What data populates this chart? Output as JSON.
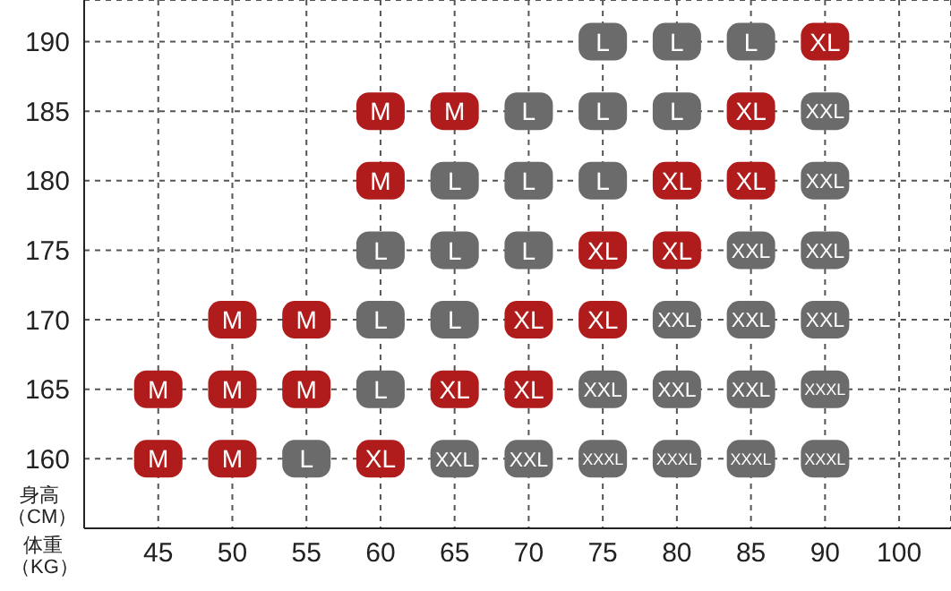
{
  "chart_data": {
    "type": "scatter",
    "xlabel": "体重（KG）",
    "ylabel": "身高（CM）",
    "categories": [
      "45",
      "50",
      "55",
      "60",
      "65",
      "70",
      "75",
      "80",
      "85",
      "90",
      "100"
    ],
    "ylim": [
      155,
      193
    ],
    "yticks": [
      160,
      165,
      170,
      175,
      180,
      185,
      190
    ],
    "grid": true,
    "legend": false,
    "marker": "square",
    "series": [
      {
        "name": "M",
        "color": "#b01c1c",
        "x": [
          "45",
          "45",
          "50",
          "50",
          "50",
          "55",
          "55",
          "60",
          "60",
          "65"
        ],
        "values": [
          165,
          160,
          170,
          165,
          160,
          170,
          165,
          185,
          180,
          185
        ]
      },
      {
        "name": "L",
        "color": "#6b6b6b",
        "x": [
          "75",
          "80",
          "85",
          "70",
          "75",
          "80",
          "65",
          "70",
          "75",
          "60",
          "65",
          "70",
          "60",
          "65",
          "60",
          "55"
        ],
        "values": [
          190,
          190,
          190,
          185,
          185,
          185,
          180,
          180,
          180,
          175,
          175,
          175,
          170,
          170,
          165,
          160
        ]
      },
      {
        "name": "XL",
        "color": "#b01c1c",
        "x": [
          "90",
          "85",
          "80",
          "85",
          "75",
          "80",
          "70",
          "75",
          "65",
          "70",
          "60"
        ],
        "values": [
          190,
          185,
          180,
          180,
          175,
          175,
          170,
          170,
          165,
          165,
          160
        ]
      },
      {
        "name": "XXL",
        "color": "#6b6b6b",
        "x": [
          "90",
          "90",
          "85",
          "90",
          "80",
          "85",
          "90",
          "75",
          "80",
          "85",
          "65",
          "70"
        ],
        "values": [
          185,
          180,
          175,
          175,
          170,
          170,
          170,
          165,
          165,
          165,
          160,
          160
        ]
      },
      {
        "name": "XXXL",
        "color": "#6b6b6b",
        "x": [
          "90",
          "75",
          "80",
          "85",
          "90"
        ],
        "values": [
          165,
          160,
          160,
          160,
          160
        ]
      }
    ]
  }
}
